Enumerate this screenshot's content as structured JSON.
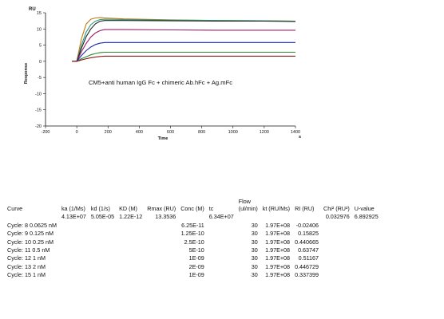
{
  "chart_data": {
    "type": "line",
    "ylabel_unit": "RU",
    "ylabel": "Response",
    "xlabel": "Time",
    "xunit": "s",
    "annotation": "CM5+anti human IgG Fc + chimeric Ab.hFc + Ag.mFc",
    "xlim": [
      -200,
      1400
    ],
    "ylim": [
      -20,
      15
    ],
    "xticks": [
      -200,
      0,
      200,
      400,
      600,
      800,
      1000,
      1200,
      1400
    ],
    "yticks": [
      15,
      10,
      5,
      0,
      -5,
      -10,
      -15,
      -20
    ],
    "grid": false,
    "series": [
      {
        "color": "#c07a10",
        "x": [
          -30,
          0,
          30,
          60,
          90,
          120,
          150,
          180,
          300,
          600,
          900,
          1200,
          1400
        ],
        "y": [
          0,
          0,
          7,
          11.5,
          13.0,
          13.4,
          13.5,
          13.4,
          13.1,
          12.8,
          12.6,
          12.5,
          12.4
        ]
      },
      {
        "color": "#2a9a78",
        "x": [
          -30,
          0,
          30,
          60,
          90,
          120,
          150,
          180,
          300,
          600,
          900,
          1200,
          1400
        ],
        "y": [
          0,
          0,
          5,
          9,
          11.3,
          12.4,
          12.9,
          13.0,
          12.9,
          12.7,
          12.6,
          12.5,
          12.4
        ]
      },
      {
        "color": "#222222",
        "x": [
          -30,
          0,
          30,
          60,
          90,
          120,
          150,
          180,
          300,
          600,
          900,
          1200,
          1400
        ],
        "y": [
          0,
          0,
          4,
          7.6,
          10.0,
          11.6,
          12.4,
          12.6,
          12.6,
          12.5,
          12.4,
          12.4,
          12.3
        ]
      },
      {
        "color": "#a01a6a",
        "x": [
          -30,
          0,
          30,
          60,
          90,
          120,
          150,
          180,
          300,
          600,
          900,
          1200,
          1400
        ],
        "y": [
          0,
          0,
          3,
          5.5,
          7.5,
          8.8,
          9.5,
          9.8,
          9.8,
          9.7,
          9.6,
          9.6,
          9.6
        ]
      },
      {
        "color": "#1a2aa8",
        "x": [
          -30,
          0,
          30,
          60,
          90,
          120,
          150,
          180,
          300,
          600,
          900,
          1200,
          1400
        ],
        "y": [
          0,
          0,
          1.8,
          3.3,
          4.4,
          5.2,
          5.6,
          5.8,
          5.8,
          5.8,
          5.8,
          5.8,
          5.8
        ]
      },
      {
        "color": "#2e8a2e",
        "x": [
          -30,
          0,
          30,
          60,
          90,
          120,
          150,
          180,
          300,
          600,
          900,
          1200,
          1400
        ],
        "y": [
          0,
          0,
          0.8,
          1.4,
          2.0,
          2.4,
          2.7,
          2.8,
          2.8,
          2.8,
          2.8,
          2.8,
          2.8
        ]
      },
      {
        "color": "#8a1a1a",
        "x": [
          -30,
          0,
          30,
          60,
          90,
          120,
          150,
          180,
          300,
          600,
          900,
          1200,
          1400
        ],
        "y": [
          0,
          0,
          0.4,
          0.8,
          1.1,
          1.3,
          1.5,
          1.6,
          1.6,
          1.6,
          1.6,
          1.6,
          1.6
        ]
      }
    ]
  },
  "table": {
    "headers": [
      "Curve",
      "ka (1/Ms)",
      "kd (1/s)",
      "KD (M)",
      "Rmax (RU)",
      "Conc (M)",
      "tc",
      "Flow (ul/min)",
      "kt (RU/Ms)",
      "RI (RU)",
      "Chi² (RU²)",
      "U-value"
    ],
    "flow_header_line1": "Flow",
    "flow_header_line2": "(ul/min)",
    "rows": [
      [
        "",
        "4.13E+07",
        "5.05E-05",
        "1.22E-12",
        "13.3536",
        "",
        "6.34E+07",
        "",
        "",
        "",
        "0.032976",
        "6.892925"
      ],
      [
        "Cycle: 8  0.0625 nM",
        "",
        "",
        "",
        "",
        "6.25E-11",
        "",
        "30",
        "1.97E+08",
        "-0.02406",
        "",
        ""
      ],
      [
        "Cycle: 9  0.125 nM",
        "",
        "",
        "",
        "",
        "1.25E-10",
        "",
        "30",
        "1.97E+08",
        "0.15825",
        "",
        ""
      ],
      [
        "Cycle: 10  0.25 nM",
        "",
        "",
        "",
        "",
        "2.5E-10",
        "",
        "30",
        "1.97E+08",
        "0.440665",
        "",
        ""
      ],
      [
        "Cycle: 11  0.5 nM",
        "",
        "",
        "",
        "",
        "5E-10",
        "",
        "30",
        "1.97E+08",
        "0.63747",
        "",
        ""
      ],
      [
        "Cycle: 12  1 nM",
        "",
        "",
        "",
        "",
        "1E-09",
        "",
        "30",
        "1.97E+08",
        "0.51167",
        "",
        ""
      ],
      [
        "Cycle: 13  2 nM",
        "",
        "",
        "",
        "",
        "2E-09",
        "",
        "30",
        "1.97E+08",
        "0.446729",
        "",
        ""
      ],
      [
        "Cycle: 15  1 nM",
        "",
        "",
        "",
        "",
        "1E-09",
        "",
        "30",
        "1.97E+08",
        "0.337399",
        "",
        ""
      ]
    ]
  }
}
